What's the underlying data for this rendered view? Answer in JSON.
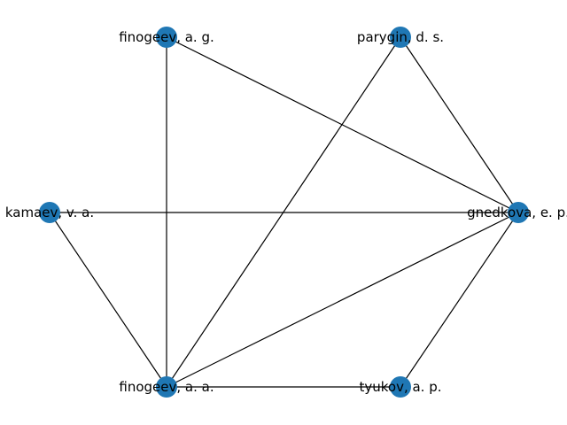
{
  "graph": {
    "node_color": "#1f77b4",
    "edge_color": "#000000",
    "nodes": [
      {
        "id": "finogeev_ag",
        "label": "finogeev, a. g."
      },
      {
        "id": "parygin_ds",
        "label": "parygin, d. s."
      },
      {
        "id": "kamaev_va",
        "label": "kamaev, v. a."
      },
      {
        "id": "gnedkova_ep",
        "label": "gnedkova, e. p."
      },
      {
        "id": "finogeev_aa",
        "label": "finogeev, a. a."
      },
      {
        "id": "tyukov_ap",
        "label": "tyukov, a. p."
      }
    ],
    "edges": [
      [
        "finogeev_ag",
        "finogeev_aa"
      ],
      [
        "finogeev_ag",
        "gnedkova_ep"
      ],
      [
        "parygin_ds",
        "finogeev_aa"
      ],
      [
        "parygin_ds",
        "gnedkova_ep"
      ],
      [
        "kamaev_va",
        "gnedkova_ep"
      ],
      [
        "kamaev_va",
        "finogeev_aa"
      ],
      [
        "finogeev_aa",
        "gnedkova_ep"
      ],
      [
        "finogeev_aa",
        "tyukov_ap"
      ],
      [
        "gnedkova_ep",
        "tyukov_ap"
      ]
    ]
  }
}
